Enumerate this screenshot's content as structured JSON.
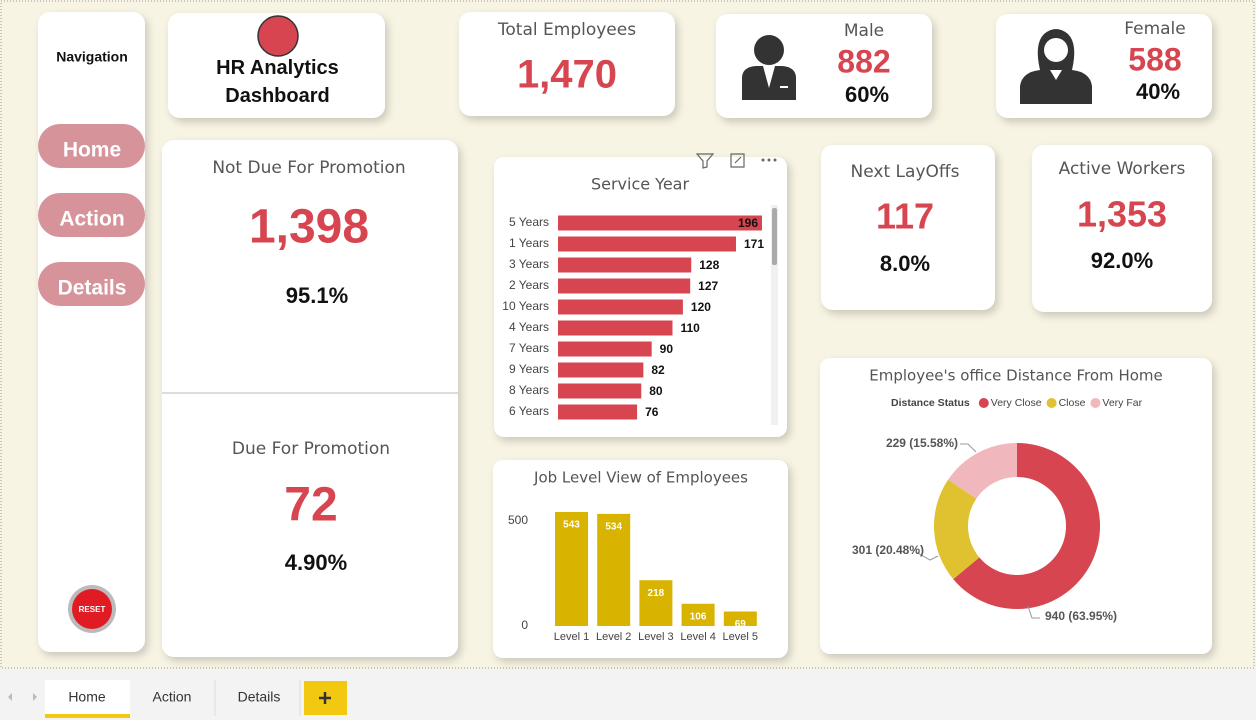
{
  "navigation": {
    "title": "Navigation",
    "buttons": [
      "Home",
      "Action",
      "Details"
    ],
    "reset": "RESET"
  },
  "header": {
    "title": "HR Analytics Dashboard"
  },
  "cards": {
    "total_employees": {
      "label": "Total Employees",
      "value": "1,470"
    },
    "male": {
      "label": "Male",
      "value": "882",
      "percent": "60%"
    },
    "female": {
      "label": "Female",
      "value": "588",
      "percent": "40%"
    },
    "not_due_for_promotion": {
      "label": "Not Due For Promotion",
      "value": "1,398",
      "percent": "95.1%"
    },
    "due_for_promotion": {
      "label": "Due For Promotion",
      "value": "72",
      "percent": "4.90%"
    },
    "next_layoffs": {
      "label": "Next LayOffs",
      "value": "117",
      "percent": "8.0%"
    },
    "active_workers": {
      "label": "Active Workers",
      "value": "1,353",
      "percent": "92.0%"
    }
  },
  "tabs": [
    "Home",
    "Action",
    "Details"
  ],
  "chart_data": [
    {
      "type": "hbar",
      "title": "Service Year",
      "categories": [
        "5 Years",
        "1 Years",
        "3 Years",
        "2 Years",
        "10 Years",
        "4 Years",
        "7 Years",
        "9 Years",
        "8 Years",
        "6 Years"
      ],
      "values": [
        196,
        171,
        128,
        127,
        120,
        110,
        90,
        82,
        80,
        76
      ],
      "color": "#d64550"
    },
    {
      "type": "bar",
      "title": "Job Level View of Employees",
      "categories": [
        "Level 1",
        "Level 2",
        "Level 3",
        "Level 4",
        "Level 5"
      ],
      "values": [
        543,
        534,
        218,
        106,
        69
      ],
      "color": "#d8b400",
      "ylim": [
        0,
        550
      ],
      "yticks": [
        0,
        500
      ]
    },
    {
      "type": "donut",
      "title": "Employee's office Distance From Home",
      "legend_title": "Distance Status",
      "categories": [
        "Very Close",
        "Close",
        "Very Far"
      ],
      "values": [
        940,
        301,
        229
      ],
      "value_labels": [
        "940 (63.95%)",
        "301 (20.48%)",
        "229 (15.58%)"
      ],
      "colors": [
        "#d64550",
        "#e0c230",
        "#f0b8bd"
      ]
    }
  ]
}
